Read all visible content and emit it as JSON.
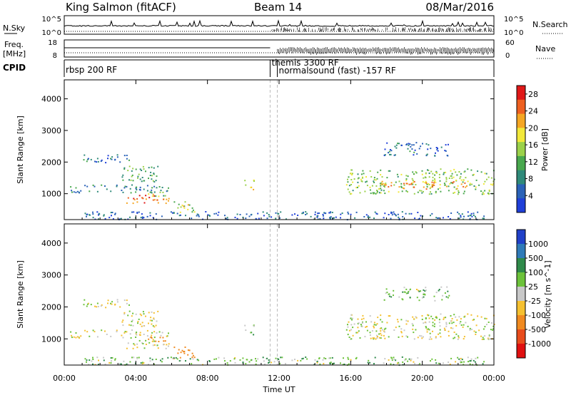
{
  "header": {
    "station": "King Salmon (fitACF)",
    "beam": "Beam 14",
    "date": "08/Mar/2016"
  },
  "strips": {
    "nsky_label": "N.Sky",
    "nsky_ticks": [
      "10^5",
      "10^0"
    ],
    "nsearch_label": "N.Search",
    "nsearch_ticks": [
      "10^5",
      "10^0"
    ],
    "freq_label_1": "Freq.",
    "freq_label_2": "[MHz]",
    "freq_ticks": [
      "18",
      "8"
    ],
    "nave_label": "Nave",
    "nave_ticks": [
      "60",
      "0"
    ],
    "cpid_label": "CPID"
  },
  "cpid_segments": [
    {
      "label": "rbsp 200 RF",
      "start_hour": 0.0,
      "end_hour": 11.5
    },
    {
      "label": "themis 3300 RF",
      "start_hour": 11.5,
      "end_hour": 11.9
    },
    {
      "label": "normalsound (fast) -157 RF",
      "start_hour": 11.9,
      "end_hour": 24.0
    }
  ],
  "x_axis": {
    "label": "Time UT",
    "ticks": [
      "00:00",
      "04:00",
      "08:00",
      "12:00",
      "16:00",
      "20:00",
      "00:00"
    ],
    "tick_hours": [
      0,
      4,
      8,
      12,
      16,
      20,
      24
    ]
  },
  "chart_data": [
    {
      "type": "heatmap",
      "title": "",
      "xlabel": "Time UT",
      "ylabel": "Slant Range [km]",
      "xlim": [
        0,
        24
      ],
      "ylim": [
        180,
        4600
      ],
      "y_ticks": [
        "1000",
        "2000",
        "3000",
        "4000"
      ],
      "y_tick_values": [
        1000,
        2000,
        3000,
        4000
      ],
      "colorbar": {
        "label": "Power [dB]",
        "ticks": [
          "4",
          "8",
          "12",
          "16",
          "20",
          "24",
          "28"
        ],
        "tick_values": [
          4,
          8,
          12,
          16,
          20,
          24,
          28
        ],
        "range": [
          0,
          30
        ],
        "colors": [
          "#1f3fd8",
          "#2a62b8",
          "#2f8a7a",
          "#49a84e",
          "#9bd14a",
          "#f2e83a",
          "#f5a623",
          "#ee6020",
          "#e01818"
        ]
      },
      "regions": [
        {
          "t0": 0.3,
          "t1": 5.8,
          "r0": 1050,
          "r1": 1300,
          "value": 8
        },
        {
          "t0": 1.0,
          "t1": 3.6,
          "r0": 2000,
          "r1": 2250,
          "value": 6
        },
        {
          "t0": 3.2,
          "t1": 5.3,
          "r0": 1350,
          "r1": 1900,
          "value": 12
        },
        {
          "t0": 3.4,
          "t1": 5.9,
          "r0": 700,
          "r1": 1000,
          "value": 24
        },
        {
          "t0": 4.4,
          "t1": 5.7,
          "r0": 920,
          "r1": 1080,
          "value": 14
        },
        {
          "t0": 6.0,
          "t1": 7.3,
          "r0": 400,
          "r1": 780,
          "value": 16
        },
        {
          "t0": 9.9,
          "t1": 10.6,
          "r0": 1150,
          "r1": 1450,
          "value": 18
        },
        {
          "t0": 15.7,
          "t1": 24.0,
          "r0": 1000,
          "r1": 1800,
          "value": 14
        },
        {
          "t0": 17.5,
          "t1": 22.5,
          "r0": 1150,
          "r1": 1450,
          "value": 22
        },
        {
          "t0": 17.8,
          "t1": 21.5,
          "r0": 2200,
          "r1": 2650,
          "value": 6
        },
        {
          "t0": 1.0,
          "t1": 23.5,
          "r0": 200,
          "r1": 450,
          "value": 5
        }
      ]
    },
    {
      "type": "heatmap",
      "title": "",
      "xlabel": "Time UT",
      "ylabel": "Slant Range [km]",
      "xlim": [
        0,
        24
      ],
      "ylim": [
        180,
        4600
      ],
      "y_ticks": [
        "1000",
        "2000",
        "3000",
        "4000"
      ],
      "y_tick_values": [
        1000,
        2000,
        3000,
        4000
      ],
      "colorbar": {
        "label": "Velocity [m s^-1]",
        "ticks": [
          "1000",
          "500",
          "100",
          "25",
          "-25",
          "-100",
          "-500",
          "-1000"
        ],
        "tick_values": [
          1000,
          500,
          100,
          25,
          -25,
          -100,
          -500,
          -1000
        ],
        "colors": [
          "#2040c8",
          "#2f7ab8",
          "#2f8a4a",
          "#6cc23a",
          "#c8c8c8",
          "#f5c030",
          "#f08a20",
          "#e84c1c",
          "#e01010"
        ]
      },
      "regions": [
        {
          "t0": 0.3,
          "t1": 5.8,
          "r0": 1050,
          "r1": 1300,
          "value": 0
        },
        {
          "t0": 1.0,
          "t1": 3.6,
          "r0": 2000,
          "r1": 2250,
          "value": 0
        },
        {
          "t0": 3.2,
          "t1": 5.3,
          "r0": 1350,
          "r1": 1900,
          "value": 0
        },
        {
          "t0": 3.4,
          "t1": 5.9,
          "r0": 700,
          "r1": 1000,
          "value": 0
        },
        {
          "t0": 4.4,
          "t1": 5.7,
          "r0": 920,
          "r1": 1080,
          "value": -300
        },
        {
          "t0": 6.0,
          "t1": 7.3,
          "r0": 400,
          "r1": 780,
          "value": -300
        },
        {
          "t0": 9.9,
          "t1": 10.6,
          "r0": 1150,
          "r1": 1450,
          "value": 60
        },
        {
          "t0": 15.7,
          "t1": 24.0,
          "r0": 1000,
          "r1": 1800,
          "value": 0
        },
        {
          "t0": 17.8,
          "t1": 21.5,
          "r0": 2200,
          "r1": 2650,
          "value": 60
        },
        {
          "t0": 1.0,
          "t1": 23.5,
          "r0": 200,
          "r1": 450,
          "value": 60
        }
      ]
    }
  ]
}
